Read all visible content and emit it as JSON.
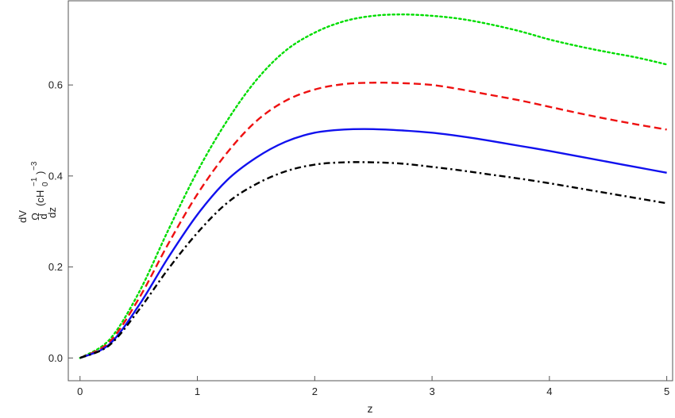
{
  "chart_data": {
    "type": "line",
    "xlabel": "z",
    "ylabel": {
      "frac_top": "dV",
      "frac_bottom": "dz",
      "omega": "Ω",
      "d_char": "d",
      "paren_open": "(cH",
      "sub": "0",
      "sup": "−1",
      "paren_close": ")",
      "exp": "−3"
    },
    "xlim": [
      -0.1,
      5.05
    ],
    "ylim": [
      -0.05,
      0.785
    ],
    "xticks": [
      0,
      1,
      2,
      3,
      4,
      5
    ],
    "xtick_labels": [
      "0",
      "1",
      "2",
      "3",
      "4",
      "5"
    ],
    "yticks": [
      0.0,
      0.2,
      0.4,
      0.6
    ],
    "ytick_labels": [
      "0.0",
      "0.2",
      "0.4",
      "0.6"
    ],
    "grid": false,
    "series": [
      {
        "color": "#00dd00",
        "style": "dotted",
        "x": [
          0,
          0.25,
          0.5,
          0.75,
          1.0,
          1.25,
          1.5,
          1.75,
          2.0,
          2.25,
          2.5,
          2.75,
          3.0,
          3.25,
          3.5,
          3.75,
          4.0,
          4.25,
          4.5,
          4.75,
          5.0
        ],
        "y": [
          0.0,
          0.04,
          0.143,
          0.28,
          0.41,
          0.52,
          0.61,
          0.675,
          0.715,
          0.74,
          0.752,
          0.755,
          0.752,
          0.745,
          0.733,
          0.718,
          0.7,
          0.685,
          0.672,
          0.66,
          0.645
        ]
      },
      {
        "color": "#ee1111",
        "style": "dashed",
        "x": [
          0,
          0.25,
          0.5,
          0.75,
          1.0,
          1.25,
          1.5,
          1.75,
          2.0,
          2.25,
          2.5,
          2.75,
          3.0,
          3.25,
          3.5,
          3.75,
          4.0,
          4.25,
          4.5,
          4.75,
          5.0
        ],
        "y": [
          0.0,
          0.035,
          0.13,
          0.25,
          0.36,
          0.45,
          0.52,
          0.565,
          0.59,
          0.602,
          0.605,
          0.604,
          0.6,
          0.59,
          0.578,
          0.566,
          0.552,
          0.538,
          0.525,
          0.513,
          0.502
        ]
      },
      {
        "color": "#1111ee",
        "style": "solid",
        "x": [
          0,
          0.25,
          0.5,
          0.75,
          1.0,
          1.25,
          1.5,
          1.75,
          2.0,
          2.25,
          2.5,
          2.75,
          3.0,
          3.25,
          3.5,
          3.75,
          4.0,
          4.25,
          4.5,
          4.75,
          5.0
        ],
        "y": [
          0.0,
          0.03,
          0.115,
          0.22,
          0.315,
          0.39,
          0.44,
          0.475,
          0.495,
          0.502,
          0.503,
          0.5,
          0.495,
          0.487,
          0.477,
          0.466,
          0.455,
          0.443,
          0.431,
          0.419,
          0.407
        ]
      },
      {
        "color": "#000000",
        "style": "dashdot",
        "x": [
          0,
          0.25,
          0.5,
          0.75,
          1.0,
          1.25,
          1.5,
          1.75,
          2.0,
          2.25,
          2.5,
          2.75,
          3.0,
          3.25,
          3.5,
          3.75,
          4.0,
          4.25,
          4.5,
          4.75,
          5.0
        ],
        "y": [
          0.0,
          0.028,
          0.105,
          0.195,
          0.275,
          0.34,
          0.382,
          0.41,
          0.425,
          0.43,
          0.43,
          0.427,
          0.42,
          0.412,
          0.403,
          0.394,
          0.384,
          0.373,
          0.362,
          0.351,
          0.34
        ]
      }
    ]
  }
}
